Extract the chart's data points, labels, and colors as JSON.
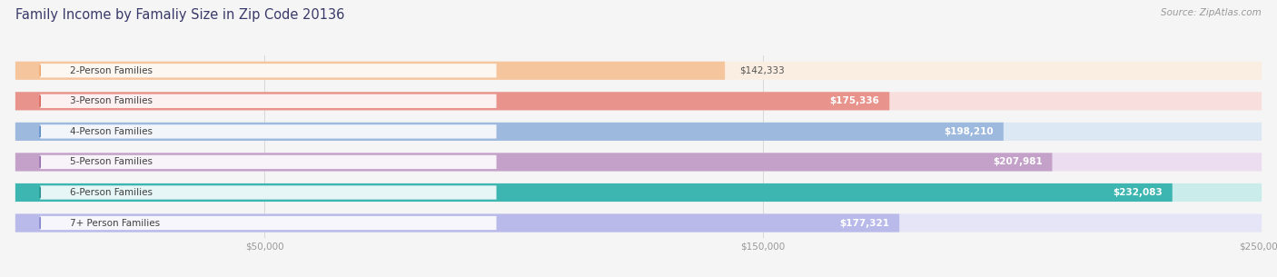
{
  "title": "Family Income by Famaliy Size in Zip Code 20136",
  "source": "Source: ZipAtlas.com",
  "categories": [
    "2-Person Families",
    "3-Person Families",
    "4-Person Families",
    "5-Person Families",
    "6-Person Families",
    "7+ Person Families"
  ],
  "values": [
    142333,
    175336,
    198210,
    207981,
    232083,
    177321
  ],
  "labels": [
    "$142,333",
    "$175,336",
    "$198,210",
    "$207,981",
    "$232,083",
    "$177,321"
  ],
  "bar_colors": [
    "#f5c59e",
    "#e8938b",
    "#9db9dd",
    "#c4a1c9",
    "#3db5b0",
    "#b9b9ea"
  ],
  "bar_bg_colors": [
    "#faeee2",
    "#f8dedd",
    "#dce8f3",
    "#ecddf0",
    "#caecea",
    "#e5e5f7"
  ],
  "dot_colors": [
    "#efa870",
    "#d96b62",
    "#6090c8",
    "#9a71b0",
    "#2a9590",
    "#8888d0"
  ],
  "xlim": [
    0,
    250000
  ],
  "xticks": [
    0,
    50000,
    150000,
    250000
  ],
  "xtick_labels": [
    "",
    "$50,000",
    "$150,000",
    "$250,000"
  ],
  "title_fontsize": 10.5,
  "source_fontsize": 7.5,
  "cat_fontsize": 7.5,
  "val_fontsize": 7.5,
  "tick_fontsize": 7.5,
  "label_inside": [
    false,
    true,
    true,
    true,
    true,
    true
  ],
  "background_color": "#f5f5f5"
}
